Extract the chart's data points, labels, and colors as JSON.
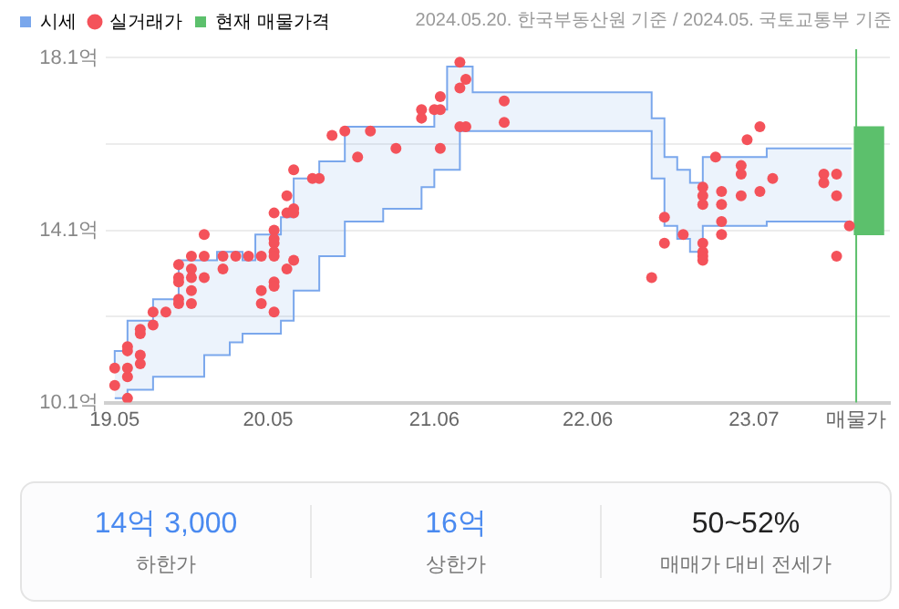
{
  "chart_data": [
    {
      "type": "scatter",
      "subtitle": "2024.05.20. 한국부동산원 기준 / 2024.05. 국토교통부 기준",
      "legend": "top left",
      "grid": "y",
      "xlim": [
        "2019-04-10",
        "2024-05-20"
      ],
      "xticks": [
        {
          "value": "2019-05",
          "label": "19.05"
        },
        {
          "value": "2020-05",
          "label": "20.05"
        },
        {
          "value": "2021-06",
          "label": "21.06"
        },
        {
          "value": "2022-06",
          "label": "22.06"
        },
        {
          "value": "2023-07",
          "label": "23.07"
        },
        {
          "value": "2024-03",
          "label": "매물가"
        }
      ],
      "ylim": [
        10.1,
        18.3
      ],
      "yticks": [
        {
          "value": 10.1,
          "label": "10.1억"
        },
        {
          "value": 12.1,
          "label": null
        },
        {
          "value": 14.1,
          "label": "14.1억"
        },
        {
          "value": 16.1,
          "label": null
        },
        {
          "value": 18.1,
          "label": "18.1억"
        }
      ],
      "ref_lines": [
        {
          "axis": "x",
          "value": "2024-03",
          "color": "#5cc06c"
        }
      ],
      "series": [
        {
          "name": "시세",
          "type": "step",
          "color": "#7aa7ec",
          "x": [
            "2019-05",
            "2019-06",
            "2019-08",
            "2019-10",
            "2019-12",
            "2020-01",
            "2020-02",
            "2020-03",
            "2020-04",
            "2020-06",
            "2020-07",
            "2020-09",
            "2020-11",
            "2021-02",
            "2021-05",
            "2021-06",
            "2021-07",
            "2021-08",
            "2021-09",
            "2022-11",
            "2022-12",
            "2023-01",
            "2023-02",
            "2023-03",
            "2023-08",
            "2023-11",
            "2024-02-20"
          ],
          "values": [
            10.9,
            11.3,
            12.0,
            12.5,
            13.4,
            13.4,
            13.6,
            13.6,
            13.4,
            14.0,
            14.4,
            15.3,
            15.7,
            16.5,
            16.5,
            16.5,
            16.9,
            17.9,
            17.9,
            17.3,
            16.7,
            15.8,
            15.5,
            15.2,
            15.8,
            16.0,
            16.0
          ],
          "upper": [
            10.9,
            11.3,
            12.0,
            12.5,
            13.4,
            13.4,
            13.6,
            13.6,
            13.4,
            14.0,
            14.4,
            15.3,
            15.7,
            16.5,
            16.5,
            16.5,
            16.9,
            17.9,
            17.9,
            17.3,
            16.7,
            15.8,
            15.5,
            15.2,
            15.8,
            16.0,
            16.0
          ],
          "lower": [
            10.2,
            10.2,
            10.4,
            10.7,
            10.7,
            11.2,
            11.2,
            11.5,
            11.7,
            11.7,
            12.0,
            12.7,
            13.5,
            14.3,
            14.6,
            15.1,
            15.5,
            15.5,
            16.4,
            16.4,
            15.3,
            14.2,
            13.9,
            13.6,
            14.2,
            14.3,
            14.3
          ]
        },
        {
          "type": "step",
          "color": "#7aa7ec",
          "x": [
            "2019-05",
            "2019-06",
            "2019-08",
            "2019-10",
            "2019-12",
            "2020-01",
            "2020-02",
            "2020-03",
            "2020-04",
            "2020-06",
            "2020-07",
            "2020-09",
            "2020-11",
            "2021-02",
            "2021-05",
            "2021-06",
            "2021-07",
            "2021-08",
            "2021-09",
            "2022-11",
            "2022-12",
            "2023-01",
            "2023-02",
            "2023-03",
            "2023-08",
            "2023-11",
            "2024-02-20"
          ],
          "values": [
            10.2,
            10.2,
            10.4,
            10.7,
            10.7,
            11.2,
            11.2,
            11.5,
            11.7,
            11.7,
            12.0,
            12.7,
            13.5,
            14.3,
            14.6,
            15.1,
            15.5,
            15.5,
            16.4,
            16.4,
            15.3,
            14.2,
            13.9,
            13.6,
            14.2,
            14.3,
            14.3
          ]
        },
        {
          "name": "실거래가",
          "type": "scatter",
          "color": "#f4525a",
          "marker": "circle",
          "x": [
            "2019-05",
            "2019-05",
            "2019-06",
            "2019-06",
            "2019-06",
            "2019-06",
            "2019-06",
            "2019-07",
            "2019-07",
            "2019-07",
            "2019-07",
            "2019-08",
            "2019-08",
            "2019-09",
            "2019-10",
            "2019-10",
            "2019-10",
            "2019-10",
            "2019-10",
            "2019-11",
            "2019-11",
            "2019-11",
            "2019-11",
            "2019-11",
            "2019-12",
            "2019-12",
            "2019-12",
            "2020-01-15",
            "2020-01-15",
            "2020-02-15",
            "2020-03-15",
            "2020-04-15",
            "2020-04-15",
            "2020-04-15",
            "2020-05-15",
            "2020-05-15",
            "2020-05-15",
            "2020-05-15",
            "2020-05-15",
            "2020-05-15",
            "2020-05-15",
            "2020-05-15",
            "2020-05-15",
            "2020-06-15",
            "2020-06-15",
            "2020-06-15",
            "2020-07",
            "2020-07",
            "2020-07",
            "2020-07",
            "2020-08-15",
            "2020-09",
            "2020-10",
            "2020-11",
            "2020-12",
            "2021-01",
            "2021-03",
            "2021-05",
            "2021-05",
            "2021-06",
            "2021-06-15",
            "2021-06-15",
            "2021-06-15",
            "2021-08",
            "2021-08",
            "2021-08",
            "2021-08-15",
            "2021-08-15",
            "2021-11-15",
            "2021-11-15",
            "2022-11",
            "2022-12",
            "2022-12",
            "2023-01-15",
            "2023-03",
            "2023-03",
            "2023-03",
            "2023-03",
            "2023-03",
            "2023-03",
            "2023-03",
            "2023-04",
            "2023-04-15",
            "2023-04-15",
            "2023-04-15",
            "2023-04-15",
            "2023-06",
            "2023-06",
            "2023-06",
            "2023-06-15",
            "2023-07-15",
            "2023-07-15",
            "2023-08-15",
            "2023-12-15",
            "2023-12-15",
            "2024-01-15",
            "2024-01-15",
            "2024-01-15",
            "2024-02-15"
          ],
          "values": [
            10.9,
            10.5,
            10.2,
            10.7,
            10.9,
            11.3,
            11.4,
            11.2,
            11.0,
            11.7,
            11.8,
            11.9,
            12.2,
            12.2,
            12.4,
            12.5,
            12.9,
            13.0,
            13.3,
            12.4,
            12.7,
            13.0,
            13.2,
            13.5,
            14.0,
            13.5,
            13.0,
            13.5,
            13.2,
            13.5,
            13.5,
            13.5,
            12.4,
            12.7,
            14.5,
            14.1,
            13.9,
            13.8,
            13.6,
            13.5,
            12.9,
            12.8,
            12.2,
            14.9,
            14.5,
            13.2,
            15.5,
            14.6,
            14.5,
            13.4,
            15.3,
            15.3,
            16.3,
            16.4,
            15.8,
            16.4,
            16.0,
            16.9,
            16.7,
            16.9,
            16.9,
            17.2,
            16.0,
            18.0,
            17.4,
            16.5,
            17.6,
            16.5,
            17.1,
            16.6,
            13.0,
            14.4,
            13.8,
            14.0,
            15.1,
            14.9,
            14.7,
            13.8,
            13.6,
            13.5,
            13.4,
            15.8,
            15.0,
            14.7,
            14.3,
            14.0,
            15.6,
            15.4,
            14.9,
            16.2,
            16.5,
            15.0,
            15.3,
            15.4,
            15.2,
            15.4,
            14.9,
            13.5,
            14.2
          ]
        },
        {
          "name": "현재 매물가격",
          "type": "bar",
          "color": "#5cc06c",
          "x": [
            "2024-04"
          ],
          "base": [
            14.0
          ],
          "values": [
            2.5
          ]
        }
      ]
    },
    {
      "type": "other",
      "categories": [
        "하한가",
        "상한가",
        "매매가 대비 전세가"
      ],
      "value_labels": [
        "14억 3,000",
        "16억",
        "50~52%"
      ]
    }
  ]
}
